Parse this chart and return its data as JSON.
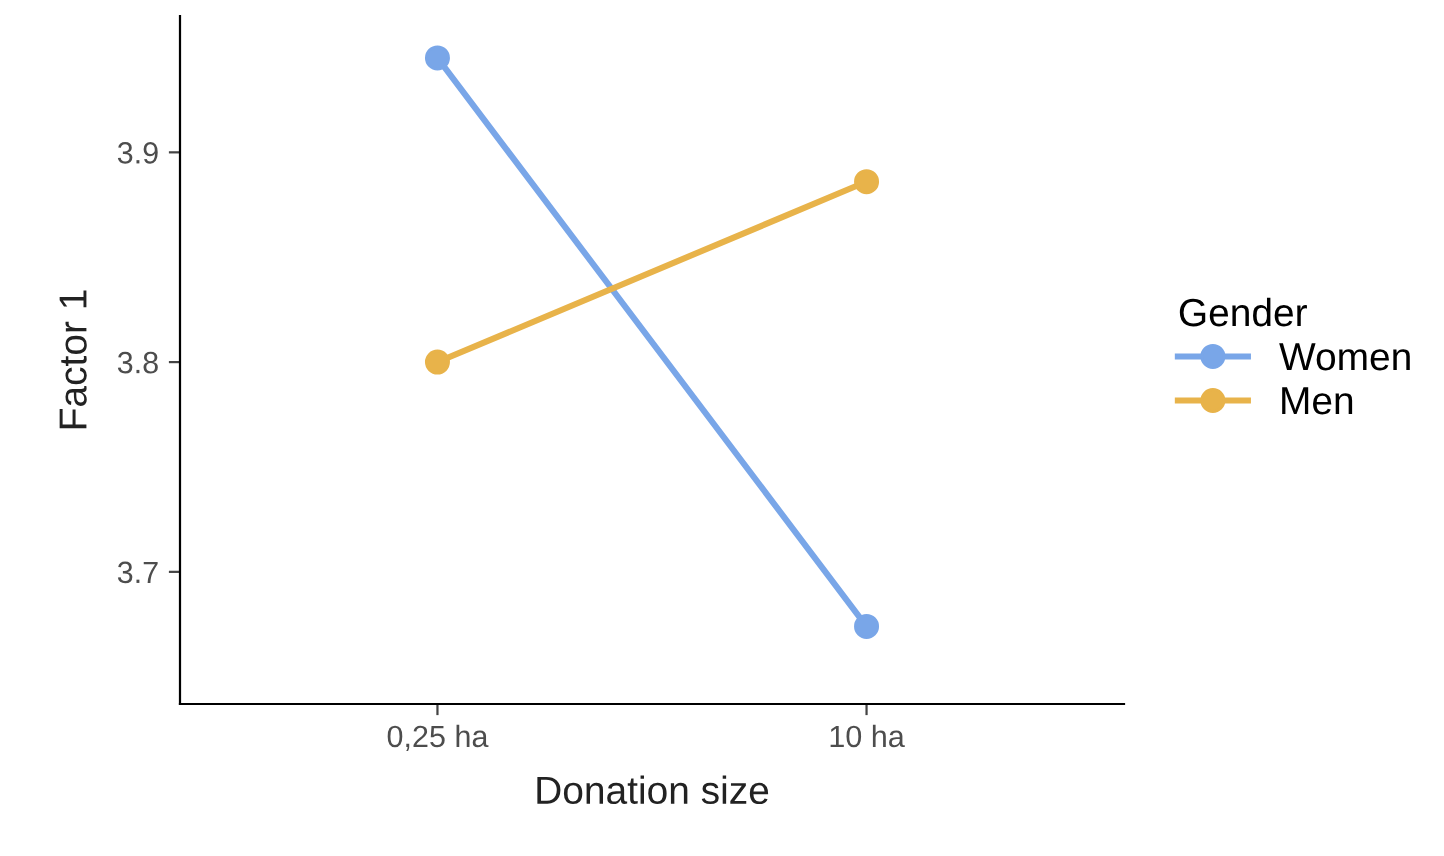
{
  "chart_data": {
    "type": "line",
    "xlabel": "Donation size",
    "ylabel": "Factor 1",
    "legend_title": "Gender",
    "categories": [
      "0,25 ha",
      "10 ha"
    ],
    "series": [
      {
        "name": "Women",
        "color": "#79a6e8",
        "values": [
          3.945,
          3.674
        ]
      },
      {
        "name": "Men",
        "color": "#e8b34a",
        "values": [
          3.8,
          3.886
        ]
      }
    ],
    "ylim": [
      3.637,
      3.965
    ],
    "yticks": [
      3.7,
      3.8,
      3.9
    ],
    "grid": false,
    "legend": "right",
    "marker": "circle",
    "line_style": "solid"
  }
}
